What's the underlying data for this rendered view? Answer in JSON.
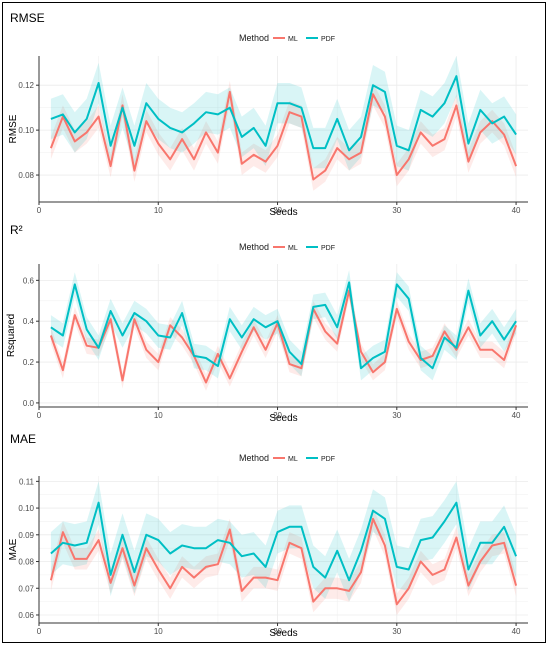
{
  "colors": {
    "ml": "#F8766D",
    "pdf": "#00BFC4",
    "grid": "#EBEBEB",
    "axis": "#333333"
  },
  "chart_data": [
    {
      "type": "line",
      "title": "RMSE",
      "xlabel": "Seeds",
      "ylabel": "RMSE",
      "legend_title": "Method",
      "legend_position": "top",
      "xlim": [
        0,
        41
      ],
      "ylim": [
        0.068,
        0.133
      ],
      "xticks": [
        0,
        10,
        20,
        30,
        40
      ],
      "yticks": [
        0.08,
        0.1,
        0.12
      ],
      "ytick_labels": [
        "0.08",
        "0.10",
        "0.12"
      ],
      "grid": true,
      "x": [
        1,
        2,
        3,
        4,
        5,
        6,
        7,
        8,
        9,
        10,
        11,
        12,
        13,
        14,
        15,
        16,
        17,
        18,
        19,
        20,
        21,
        22,
        23,
        24,
        25,
        26,
        27,
        28,
        29,
        30,
        31,
        32,
        33,
        34,
        35,
        36,
        37,
        38,
        39,
        40
      ],
      "series": [
        {
          "name": "ML",
          "values": [
            0.092,
            0.106,
            0.095,
            0.099,
            0.106,
            0.084,
            0.111,
            0.082,
            0.104,
            0.094,
            0.087,
            0.096,
            0.087,
            0.099,
            0.09,
            0.117,
            0.085,
            0.089,
            0.086,
            0.093,
            0.108,
            0.106,
            0.078,
            0.082,
            0.092,
            0.087,
            0.09,
            0.116,
            0.106,
            0.08,
            0.087,
            0.099,
            0.093,
            0.096,
            0.111,
            0.086,
            0.099,
            0.104,
            0.098,
            0.084
          ],
          "band": 0.005
        },
        {
          "name": "PDF",
          "values": [
            0.105,
            0.107,
            0.099,
            0.105,
            0.121,
            0.093,
            0.11,
            0.093,
            0.112,
            0.105,
            0.101,
            0.099,
            0.103,
            0.108,
            0.107,
            0.11,
            0.097,
            0.101,
            0.093,
            0.112,
            0.112,
            0.11,
            0.092,
            0.092,
            0.105,
            0.091,
            0.097,
            0.12,
            0.117,
            0.093,
            0.091,
            0.109,
            0.106,
            0.112,
            0.124,
            0.094,
            0.109,
            0.103,
            0.106,
            0.098
          ],
          "band": 0.009
        }
      ]
    },
    {
      "type": "line",
      "title": "R²",
      "xlabel": "Seeds",
      "ylabel": "Rsquared",
      "legend_title": "Method",
      "legend_position": "top",
      "xlim": [
        0,
        41
      ],
      "ylim": [
        -0.02,
        0.68
      ],
      "xticks": [
        0,
        10,
        20,
        30,
        40
      ],
      "yticks": [
        0.0,
        0.2,
        0.4,
        0.6
      ],
      "ytick_labels": [
        "0.0",
        "0.2",
        "0.4",
        "0.6"
      ],
      "grid": true,
      "x": [
        1,
        2,
        3,
        4,
        5,
        6,
        7,
        8,
        9,
        10,
        11,
        12,
        13,
        14,
        15,
        16,
        17,
        18,
        19,
        20,
        21,
        22,
        23,
        24,
        25,
        26,
        27,
        28,
        29,
        30,
        31,
        32,
        33,
        34,
        35,
        36,
        37,
        38,
        39,
        40
      ],
      "series": [
        {
          "name": "ML",
          "values": [
            0.33,
            0.16,
            0.43,
            0.28,
            0.27,
            0.41,
            0.11,
            0.41,
            0.26,
            0.2,
            0.38,
            0.32,
            0.23,
            0.1,
            0.24,
            0.12,
            0.25,
            0.37,
            0.26,
            0.39,
            0.19,
            0.17,
            0.46,
            0.35,
            0.29,
            0.55,
            0.25,
            0.15,
            0.2,
            0.46,
            0.3,
            0.21,
            0.23,
            0.35,
            0.26,
            0.37,
            0.26,
            0.26,
            0.21,
            0.38
          ],
          "band": 0.04
        },
        {
          "name": "PDF",
          "values": [
            0.37,
            0.33,
            0.58,
            0.36,
            0.27,
            0.45,
            0.33,
            0.44,
            0.4,
            0.33,
            0.32,
            0.44,
            0.23,
            0.22,
            0.18,
            0.41,
            0.32,
            0.41,
            0.37,
            0.4,
            0.25,
            0.19,
            0.47,
            0.48,
            0.37,
            0.59,
            0.17,
            0.22,
            0.25,
            0.58,
            0.51,
            0.22,
            0.17,
            0.32,
            0.27,
            0.55,
            0.33,
            0.4,
            0.31,
            0.4
          ],
          "band": 0.06
        }
      ]
    },
    {
      "type": "line",
      "title": "MAE",
      "xlabel": "Seeds",
      "ylabel": "MAE",
      "legend_title": "Method",
      "legend_position": "top",
      "xlim": [
        0,
        41
      ],
      "ylim": [
        0.057,
        0.112
      ],
      "xticks": [
        0,
        10,
        20,
        30,
        40
      ],
      "yticks": [
        0.06,
        0.07,
        0.08,
        0.09,
        0.1,
        0.11
      ],
      "ytick_labels": [
        "0.06",
        "0.07",
        "0.08",
        "0.09",
        "0.10",
        "0.11"
      ],
      "grid": true,
      "x": [
        1,
        2,
        3,
        4,
        5,
        6,
        7,
        8,
        9,
        10,
        11,
        12,
        13,
        14,
        15,
        16,
        17,
        18,
        19,
        20,
        21,
        22,
        23,
        24,
        25,
        26,
        27,
        28,
        29,
        30,
        31,
        32,
        33,
        34,
        35,
        36,
        37,
        38,
        39,
        40
      ],
      "series": [
        {
          "name": "ML",
          "values": [
            0.073,
            0.091,
            0.081,
            0.081,
            0.088,
            0.072,
            0.085,
            0.071,
            0.085,
            0.077,
            0.07,
            0.078,
            0.074,
            0.078,
            0.079,
            0.092,
            0.069,
            0.074,
            0.074,
            0.073,
            0.087,
            0.085,
            0.065,
            0.07,
            0.07,
            0.069,
            0.076,
            0.096,
            0.086,
            0.064,
            0.07,
            0.08,
            0.075,
            0.077,
            0.089,
            0.071,
            0.08,
            0.086,
            0.087,
            0.071
          ],
          "band": 0.004
        },
        {
          "name": "PDF",
          "values": [
            0.083,
            0.087,
            0.086,
            0.087,
            0.102,
            0.075,
            0.09,
            0.076,
            0.09,
            0.088,
            0.083,
            0.086,
            0.085,
            0.085,
            0.088,
            0.087,
            0.082,
            0.083,
            0.078,
            0.091,
            0.093,
            0.093,
            0.078,
            0.074,
            0.084,
            0.073,
            0.084,
            0.099,
            0.096,
            0.078,
            0.077,
            0.088,
            0.089,
            0.095,
            0.102,
            0.077,
            0.087,
            0.087,
            0.093,
            0.082
          ],
          "band": 0.008
        }
      ]
    }
  ]
}
